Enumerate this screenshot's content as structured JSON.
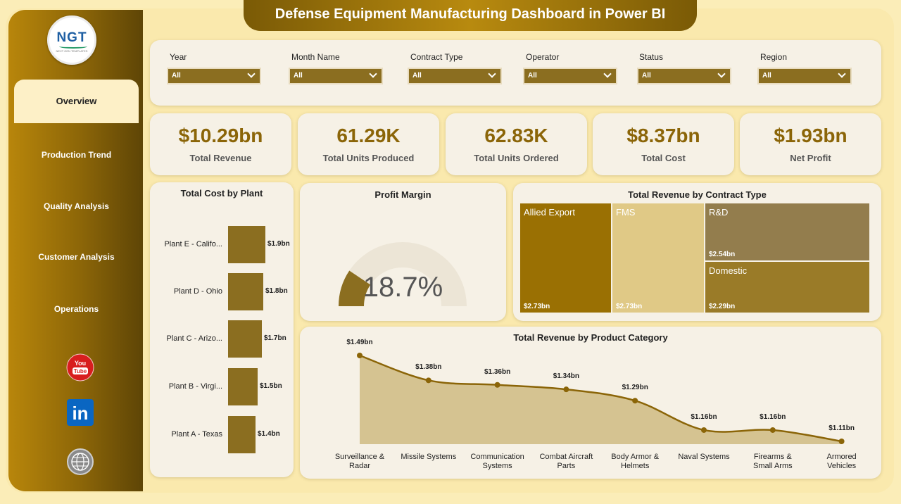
{
  "title": "Defense Equipment Manufacturing Dashboard in Power BI",
  "logo": {
    "text": "NGT",
    "subtext": "NEXT GEN TEMPLATES"
  },
  "nav": [
    {
      "label": "Overview",
      "active": true
    },
    {
      "label": "Production Trend"
    },
    {
      "label": "Quality Analysis"
    },
    {
      "label": "Customer Analysis"
    },
    {
      "label": "Operations"
    }
  ],
  "social": {
    "youtube": "You Tube",
    "linkedin": "in",
    "web": "WWW"
  },
  "filters": [
    {
      "label": "Year",
      "value": "All"
    },
    {
      "label": "Month Name",
      "value": "All"
    },
    {
      "label": "Contract Type",
      "value": "All"
    },
    {
      "label": "Operator",
      "value": "All"
    },
    {
      "label": "Status",
      "value": "All"
    },
    {
      "label": "Region",
      "value": "All"
    }
  ],
  "kpis": [
    {
      "value": "$10.29bn",
      "label": "Total Revenue"
    },
    {
      "value": "61.29K",
      "label": "Total Units Produced"
    },
    {
      "value": "62.83K",
      "label": "Total Units Ordered"
    },
    {
      "value": "$8.37bn",
      "label": "Total Cost"
    },
    {
      "value": "$1.93bn",
      "label": "Net Profit"
    }
  ],
  "colors": {
    "accent": "#8b6508",
    "bar": "#8b6e20",
    "area": "#d5c391",
    "line": "#8b6508"
  },
  "cost_by_plant": {
    "title": "Total Cost by Plant",
    "plants": [
      {
        "label": "Plant E - Califo...",
        "value": 1.9,
        "display": "$1.9bn"
      },
      {
        "label": "Plant D - Ohio",
        "value": 1.8,
        "display": "$1.8bn"
      },
      {
        "label": "Plant C - Arizo...",
        "value": 1.7,
        "display": "$1.7bn"
      },
      {
        "label": "Plant B - Virgi...",
        "value": 1.5,
        "display": "$1.5bn"
      },
      {
        "label": "Plant A - Texas",
        "value": 1.4,
        "display": "$1.4bn"
      }
    ]
  },
  "profit_margin": {
    "title": "Profit Margin",
    "value": "18.7%",
    "fraction": 0.187
  },
  "revenue_by_contract": {
    "title": "Total Revenue by Contract Type",
    "items": [
      {
        "name": "Allied Export",
        "display": "$2.73bn",
        "color": "#9a7003"
      },
      {
        "name": "FMS",
        "display": "$2.73bn",
        "color": "#e0c986"
      },
      {
        "name": "R&D",
        "display": "$2.54bn",
        "color": "#937d4d"
      },
      {
        "name": "Domestic",
        "display": "$2.29bn",
        "color": "#9a7b28"
      }
    ]
  },
  "chart_data": {
    "type": "area",
    "title": "Total Revenue by Product Category",
    "categories": [
      "Surveillance & Radar",
      "Missile Systems",
      "Communication Systems",
      "Combat Aircraft Parts",
      "Body Armor & Helmets",
      "Naval Systems",
      "Firearms & Small Arms",
      "Armored Vehicles"
    ],
    "category_lines": [
      [
        "Surveillance &",
        "Radar"
      ],
      [
        "Missile Systems"
      ],
      [
        "Communication",
        "Systems"
      ],
      [
        "Combat Aircraft",
        "Parts"
      ],
      [
        "Body Armor &",
        "Helmets"
      ],
      [
        "Naval Systems"
      ],
      [
        "Firearms &",
        "Small Arms"
      ],
      [
        "Armored",
        "Vehicles"
      ]
    ],
    "values": [
      1.49,
      1.38,
      1.36,
      1.34,
      1.29,
      1.16,
      1.16,
      1.11
    ],
    "labels": [
      "$1.49bn",
      "$1.38bn",
      "$1.36bn",
      "$1.34bn",
      "$1.29bn",
      "$1.16bn",
      "$1.16bn",
      "$1.11bn"
    ]
  }
}
